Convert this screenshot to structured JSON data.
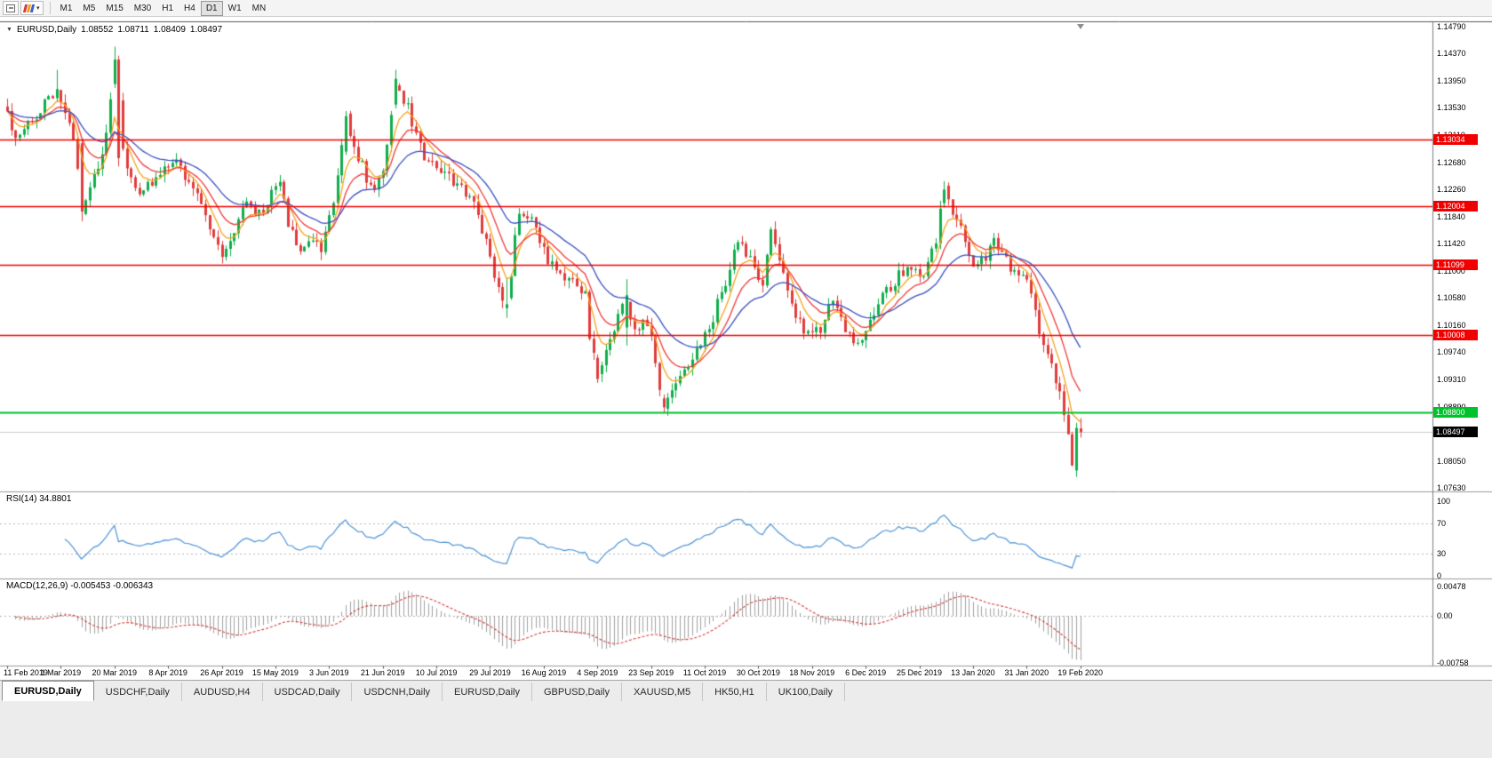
{
  "toolbar": {
    "timeframes": [
      "M1",
      "M5",
      "M15",
      "M30",
      "H1",
      "H4",
      "D1",
      "W1",
      "MN"
    ],
    "active_timeframe": "D1"
  },
  "chart": {
    "symbol_label": "EURUSD,Daily",
    "open": "1.08552",
    "high": "1.08711",
    "low": "1.08409",
    "close": "1.08497"
  },
  "rsi": {
    "label": "RSI(14) 34.8801",
    "period": 14,
    "value": 34.8801,
    "axis_labels": [
      "100",
      "70",
      "30",
      "0"
    ],
    "line_color": "#4e94d6"
  },
  "macd": {
    "label": "MACD(12,26,9) -0.005453 -0.006343",
    "fast": 12,
    "slow": 26,
    "signal": 9,
    "main_value": -0.005453,
    "signal_value": -0.006343,
    "axis_labels": [
      "0.00478",
      "0.00",
      "-0.00758"
    ],
    "axis_max": 0.00478,
    "axis_min": -0.00758
  },
  "tabs": [
    {
      "label": "EURUSD,Daily",
      "active": true
    },
    {
      "label": "USDCHF,Daily",
      "active": false
    },
    {
      "label": "AUDUSD,H4",
      "active": false
    },
    {
      "label": "USDCAD,Daily",
      "active": false
    },
    {
      "label": "USDCNH,Daily",
      "active": false
    },
    {
      "label": "EURUSD,Daily",
      "active": false
    },
    {
      "label": "GBPUSD,Daily",
      "active": false
    },
    {
      "label": "XAUUSD,M5",
      "active": false
    },
    {
      "label": "HK50,H1",
      "active": false
    },
    {
      "label": "UK100,Daily",
      "active": false
    }
  ],
  "chart_data": {
    "type": "candlestick",
    "symbol": "EURUSD",
    "timeframe": "Daily",
    "last_ohlc": {
      "open": 1.08552,
      "high": 1.08711,
      "low": 1.08409,
      "close": 1.08497
    },
    "y_range": [
      1.0763,
      1.1479
    ],
    "num_candles": 261,
    "tick_every": 13,
    "x_tick_labels": [
      "11 Feb 2019",
      "1 Mar 2019",
      "20 Mar 2019",
      "8 Apr 2019",
      "26 Apr 2019",
      "15 May 2019",
      "3 Jun 2019",
      "21 Jun 2019",
      "10 Jul 2019",
      "29 Jul 2019",
      "16 Aug 2019",
      "4 Sep 2019",
      "23 Sep 2019",
      "11 Oct 2019",
      "30 Oct 2019",
      "18 Nov 2019",
      "6 Dec 2019",
      "25 Dec 2019",
      "13 Jan 2020",
      "31 Jan 2020",
      "19 Feb 2020"
    ],
    "y_tick_labels": [
      "1.14790",
      "1.14370",
      "1.13950",
      "1.13530",
      "1.13110",
      "1.12680",
      "1.12260",
      "1.11840",
      "1.11420",
      "1.11000",
      "1.10580",
      "1.10160",
      "1.09740",
      "1.09310",
      "1.08890",
      "1.08470",
      "1.08050",
      "1.07630"
    ],
    "colors": {
      "up": "#0fae4c",
      "down": "#e13b3b",
      "ma_fast": "#f5a31d",
      "ma_mid": "#ef3b3b",
      "ma_slow": "#3b51c0"
    },
    "moving_averages": [
      {
        "period": 6,
        "color_key": "ma_fast"
      },
      {
        "period": 12,
        "color_key": "ma_mid"
      },
      {
        "period": 25,
        "color_key": "ma_slow"
      }
    ],
    "horizontal_lines": [
      {
        "price": 1.13034,
        "label": "1.13034",
        "color": "#f20000",
        "width": 1.5,
        "kind": "resistance"
      },
      {
        "price": 1.12004,
        "label": "1.12004",
        "color": "#f20000",
        "width": 1.5,
        "kind": "resistance"
      },
      {
        "price": 1.11099,
        "label": "1.11099",
        "color": "#f20000",
        "width": 1.5,
        "kind": "resistance"
      },
      {
        "price": 1.10008,
        "label": "1.10008",
        "color": "#f20000",
        "width": 1.5,
        "kind": "support"
      },
      {
        "price": 1.088,
        "label": "1.08800",
        "color": "#00c22b",
        "width": 2,
        "kind": "support"
      },
      {
        "price": 1.08497,
        "label": "1.08497",
        "color": "#000000",
        "width": 1,
        "kind": "current-price"
      }
    ],
    "anchors": [
      [
        0,
        1.134
      ],
      [
        2,
        1.1305
      ],
      [
        5,
        1.133
      ],
      [
        9,
        1.136
      ],
      [
        12,
        1.138
      ],
      [
        14,
        1.1352
      ],
      [
        16,
        1.1303
      ],
      [
        18,
        1.1195
      ],
      [
        21,
        1.1242
      ],
      [
        24,
        1.1308
      ],
      [
        26,
        1.1428
      ],
      [
        28,
        1.1282
      ],
      [
        31,
        1.1222
      ],
      [
        35,
        1.1235
      ],
      [
        38,
        1.1255
      ],
      [
        41,
        1.127
      ],
      [
        44,
        1.124
      ],
      [
        47,
        1.12
      ],
      [
        49,
        1.117
      ],
      [
        52,
        1.112
      ],
      [
        55,
        1.1165
      ],
      [
        58,
        1.12
      ],
      [
        61,
        1.1185
      ],
      [
        64,
        1.1225
      ],
      [
        66,
        1.124
      ],
      [
        68,
        1.1175
      ],
      [
        71,
        1.113
      ],
      [
        74,
        1.1155
      ],
      [
        76,
        1.1135
      ],
      [
        78,
        1.118
      ],
      [
        80,
        1.125
      ],
      [
        82,
        1.1338
      ],
      [
        84,
        1.13
      ],
      [
        86,
        1.126
      ],
      [
        88,
        1.1225
      ],
      [
        90,
        1.124
      ],
      [
        92,
        1.129
      ],
      [
        94,
        1.1398
      ],
      [
        97,
        1.1355
      ],
      [
        100,
        1.129
      ],
      [
        103,
        1.1265
      ],
      [
        107,
        1.1245
      ],
      [
        110,
        1.1225
      ],
      [
        113,
        1.1205
      ],
      [
        116,
        1.114
      ],
      [
        119,
        1.1075
      ],
      [
        121,
        1.1048
      ],
      [
        124,
        1.1195
      ],
      [
        128,
        1.117
      ],
      [
        131,
        1.112
      ],
      [
        134,
        1.1095
      ],
      [
        137,
        1.1085
      ],
      [
        140,
        1.106
      ],
      [
        141,
        1.0998
      ],
      [
        143,
        1.0932
      ],
      [
        146,
        1.099
      ],
      [
        148,
        1.1035
      ],
      [
        150,
        1.1062
      ],
      [
        152,
        1.1
      ],
      [
        154,
        1.102
      ],
      [
        156,
        1.099
      ],
      [
        157,
        1.095
      ],
      [
        159,
        1.0888
      ],
      [
        162,
        1.092
      ],
      [
        165,
        1.095
      ],
      [
        168,
        1.0985
      ],
      [
        171,
        1.103
      ],
      [
        174,
        1.108
      ],
      [
        177,
        1.115
      ],
      [
        180,
        1.112
      ],
      [
        183,
        1.1075
      ],
      [
        185,
        1.1155
      ],
      [
        188,
        1.109
      ],
      [
        191,
        1.103
      ],
      [
        194,
        1.1
      ],
      [
        197,
        1.101
      ],
      [
        200,
        1.106
      ],
      [
        203,
        1.1015
      ],
      [
        206,
        1.0982
      ],
      [
        209,
        1.102
      ],
      [
        212,
        1.1065
      ],
      [
        215,
        1.1085
      ],
      [
        218,
        1.111
      ],
      [
        222,
        1.109
      ],
      [
        225,
        1.115
      ],
      [
        227,
        1.1226
      ],
      [
        229,
        1.1195
      ],
      [
        231,
        1.116
      ],
      [
        233,
        1.1125
      ],
      [
        235,
        1.1105
      ],
      [
        237,
        1.1125
      ],
      [
        239,
        1.1145
      ],
      [
        241,
        1.1125
      ],
      [
        243,
        1.1105
      ],
      [
        245,
        1.1085
      ],
      [
        247,
        1.1095
      ],
      [
        248,
        1.107
      ],
      [
        250,
        1.101
      ],
      [
        252,
        1.097
      ],
      [
        254,
        1.093
      ],
      [
        256,
        1.088
      ],
      [
        257,
        1.085
      ],
      [
        258,
        1.08
      ],
      [
        259,
        1.0856
      ],
      [
        260,
        1.08497
      ]
    ],
    "key_candles": [
      {
        "i": 12,
        "o": 1.1368,
        "h": 1.1412,
        "l": 1.1362,
        "c": 1.1382
      },
      {
        "i": 18,
        "o": 1.1298,
        "h": 1.1305,
        "l": 1.1177,
        "c": 1.1192
      },
      {
        "i": 26,
        "o": 1.139,
        "h": 1.1448,
        "l": 1.1384,
        "c": 1.1428
      },
      {
        "i": 27,
        "o": 1.1428,
        "h": 1.1434,
        "l": 1.1262,
        "c": 1.1275
      },
      {
        "i": 82,
        "o": 1.1285,
        "h": 1.1348,
        "l": 1.128,
        "c": 1.134
      },
      {
        "i": 94,
        "o": 1.1358,
        "h": 1.1412,
        "l": 1.1352,
        "c": 1.1398
      },
      {
        "i": 121,
        "o": 1.1042,
        "h": 1.1088,
        "l": 1.1027,
        "c": 1.1048
      },
      {
        "i": 143,
        "o": 1.0965,
        "h": 1.097,
        "l": 1.0926,
        "c": 1.0932
      },
      {
        "i": 150,
        "o": 1.1012,
        "h": 1.1087,
        "l": 1.0984,
        "c": 1.1062
      },
      {
        "i": 159,
        "o": 1.0902,
        "h": 1.0908,
        "l": 1.0879,
        "c": 1.0888
      },
      {
        "i": 227,
        "o": 1.1205,
        "h": 1.1239,
        "l": 1.1198,
        "c": 1.1226
      },
      {
        "i": 259,
        "o": 1.079,
        "h": 1.0864,
        "l": 1.078,
        "c": 1.0856
      },
      {
        "i": 260,
        "o": 1.08552,
        "h": 1.08711,
        "l": 1.08409,
        "c": 1.08497
      }
    ]
  }
}
